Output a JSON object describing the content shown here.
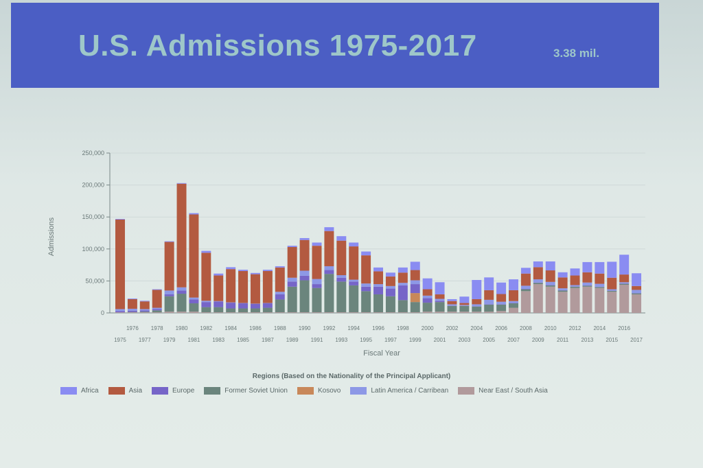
{
  "banner": {
    "title": "U.S. Admissions 1975-2017",
    "subtitle": "3.38 mil."
  },
  "chart_data": {
    "type": "bar",
    "stacked": true,
    "xlabel": "Fiscal Year",
    "ylabel": "Admissions",
    "ylim": [
      0,
      250000
    ],
    "yticks": [
      "0",
      "50,000",
      "100,000",
      "150,000",
      "200,000",
      "250,000"
    ],
    "grid": true,
    "legend_title": "Regions (Based on the Nationality of the Principal Applicant)",
    "legend_position": "bottom",
    "categories": [
      "1975",
      "1976",
      "1977",
      "1978",
      "1979",
      "1980",
      "1981",
      "1982",
      "1983",
      "1984",
      "1985",
      "1986",
      "1987",
      "1988",
      "1989",
      "1990",
      "1991",
      "1992",
      "1993",
      "1994",
      "1995",
      "1996",
      "1997",
      "1998",
      "1999",
      "2000",
      "2001",
      "2002",
      "2003",
      "2004",
      "2005",
      "2006",
      "2007",
      "2008",
      "2009",
      "2010",
      "2011",
      "2012",
      "2013",
      "2014",
      "2015",
      "2016",
      "2017"
    ],
    "series": [
      {
        "name": "Near East / South Asia",
        "color": "#b19a9c",
        "values": [
          1000,
          1000,
          1000,
          1000,
          2000,
          2000,
          2000,
          1000,
          1000,
          1000,
          1000,
          1000,
          1000,
          1000,
          1000,
          1000,
          1000,
          1000,
          1000,
          1000,
          1000,
          1000,
          1000,
          1000,
          1000,
          2000,
          2000,
          2000,
          2000,
          2000,
          2000,
          3000,
          8000,
          34000,
          45000,
          41000,
          33000,
          39000,
          41000,
          39000,
          33000,
          44000,
          29000
        ]
      },
      {
        "name": "Former Soviet Union",
        "color": "#6b857d",
        "values": [
          0,
          500,
          1000,
          3000,
          24000,
          28000,
          13000,
          8000,
          8000,
          6000,
          6000,
          6000,
          7000,
          20000,
          40000,
          50000,
          38000,
          60000,
          48000,
          42000,
          33000,
          28000,
          25000,
          19000,
          16000,
          14000,
          15000,
          9000,
          9000,
          8000,
          11000,
          10000,
          7000,
          3000,
          2000,
          2000,
          2000,
          2000,
          1500,
          1500,
          1500,
          1500,
          1500
        ]
      },
      {
        "name": "Kosovo",
        "color": "#c8885a",
        "values": [
          0,
          0,
          0,
          0,
          0,
          0,
          0,
          0,
          0,
          0,
          0,
          0,
          0,
          0,
          0,
          0,
          0,
          0,
          0,
          0,
          0,
          0,
          0,
          0,
          14000,
          0,
          0,
          0,
          0,
          0,
          0,
          0,
          0,
          0,
          0,
          0,
          0,
          0,
          0,
          0,
          0,
          0,
          0
        ]
      },
      {
        "name": "Europe",
        "color": "#7665c8",
        "values": [
          2000,
          2000,
          2000,
          2000,
          3000,
          5000,
          6000,
          8000,
          9000,
          9000,
          8000,
          7000,
          7000,
          8000,
          8000,
          7000,
          6000,
          6000,
          6000,
          6000,
          7000,
          12000,
          12000,
          23000,
          14000,
          7000,
          2000,
          500,
          500,
          500,
          500,
          500,
          500,
          500,
          500,
          500,
          500,
          500,
          500,
          500,
          500,
          500,
          500
        ]
      },
      {
        "name": "Latin America / Carribean",
        "color": "#8d98e6",
        "values": [
          3000,
          3000,
          2000,
          2000,
          6000,
          5000,
          3000,
          2000,
          500,
          500,
          500,
          500,
          500,
          4000,
          6000,
          8000,
          8000,
          6000,
          4000,
          3000,
          5000,
          4000,
          4000,
          4000,
          6000,
          4000,
          3000,
          2000,
          1000,
          3000,
          7000,
          4000,
          3000,
          5000,
          5000,
          5000,
          3000,
          2000,
          4500,
          4500,
          2000,
          2000,
          5000
        ]
      },
      {
        "name": "Asia",
        "color": "#b35a40",
        "values": [
          140000,
          15000,
          12000,
          28000,
          76000,
          162000,
          130000,
          75000,
          40000,
          52000,
          50000,
          46000,
          50000,
          38000,
          48000,
          48000,
          52000,
          55000,
          54000,
          52000,
          44000,
          20000,
          15000,
          16000,
          16000,
          10000,
          7000,
          5000,
          3000,
          8000,
          15000,
          12000,
          17000,
          19000,
          19000,
          18000,
          17000,
          15000,
          16000,
          16000,
          18000,
          12000,
          6000
        ]
      },
      {
        "name": "Africa",
        "color": "#8a8cf2",
        "values": [
          1000,
          1000,
          1000,
          1000,
          1000,
          1000,
          2000,
          3000,
          3000,
          3000,
          2000,
          2000,
          2000,
          2000,
          2000,
          3000,
          5000,
          6000,
          7000,
          6000,
          6000,
          6000,
          6000,
          8000,
          13000,
          17000,
          19000,
          3000,
          10000,
          30000,
          20000,
          18000,
          17000,
          9000,
          9000,
          14000,
          8000,
          11000,
          16000,
          18000,
          25000,
          31000,
          20000
        ]
      }
    ]
  }
}
